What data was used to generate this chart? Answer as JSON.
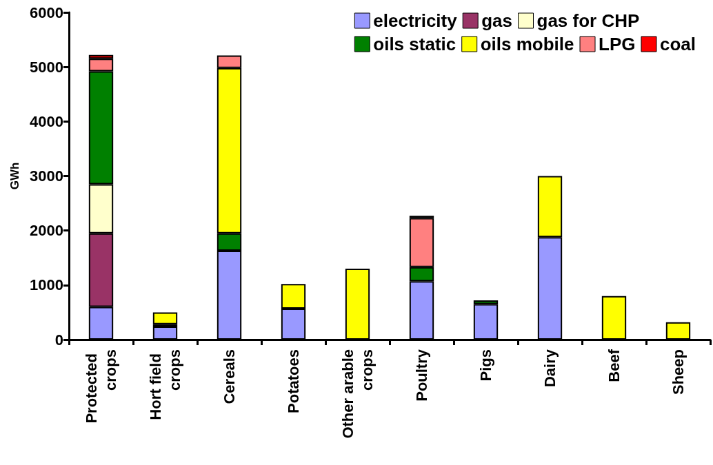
{
  "chart_data": {
    "type": "bar",
    "stacked": true,
    "ylabel": "GWh",
    "categories": [
      "Protected crops",
      "Hort field crops",
      "Cereals",
      "Potatoes",
      "Other arable crops",
      "Poultry",
      "Pigs",
      "Dairy",
      "Beef",
      "Sheep"
    ],
    "series": [
      {
        "name": "electricity",
        "color": "#9999ff",
        "values": [
          600,
          240,
          1630,
          570,
          null,
          1070,
          650,
          1880,
          null,
          null
        ]
      },
      {
        "name": "gas",
        "color": "#993366",
        "values": [
          1350,
          null,
          null,
          null,
          null,
          null,
          null,
          null,
          null,
          null
        ]
      },
      {
        "name": "gas for CHP",
        "color": "#ffffcc",
        "values": [
          900,
          null,
          null,
          null,
          null,
          null,
          null,
          null,
          null,
          null
        ]
      },
      {
        "name": "oils static",
        "color": "#008000",
        "values": [
          2070,
          40,
          320,
          null,
          null,
          260,
          70,
          null,
          null,
          null
        ]
      },
      {
        "name": "oils mobile",
        "color": "#ffff00",
        "values": [
          null,
          220,
          3030,
          450,
          1300,
          null,
          null,
          1120,
          800,
          320
        ]
      },
      {
        "name": "LPG",
        "color": "#ff8080",
        "values": [
          230,
          null,
          230,
          null,
          null,
          900,
          null,
          null,
          null,
          null
        ]
      },
      {
        "name": "coal",
        "color": "#ff0000",
        "values": [
          70,
          null,
          null,
          null,
          null,
          40,
          null,
          null,
          null,
          null
        ]
      }
    ],
    "ylim": [
      0,
      6000
    ],
    "yticks": [
      0,
      1000,
      2000,
      3000,
      4000,
      5000,
      6000
    ],
    "grid": false,
    "legend": "top right"
  }
}
